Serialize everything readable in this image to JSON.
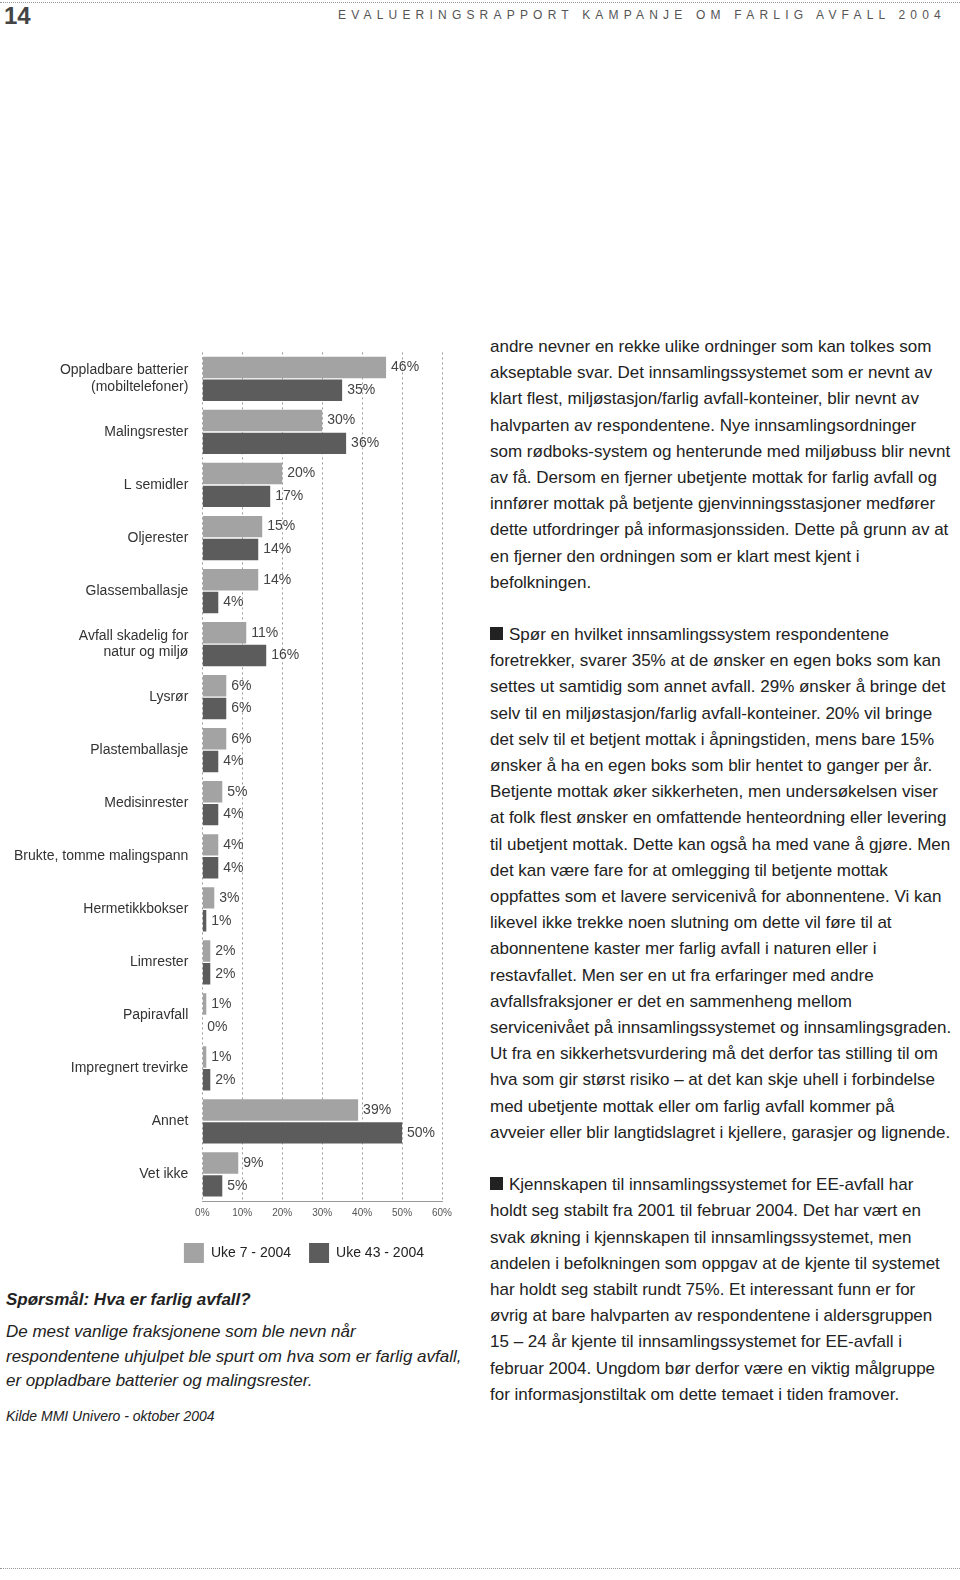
{
  "header": {
    "page_number": "14",
    "title": "EVALUERINGSRAPPORT KAMPANJE OM FARLIG AVFALL 2004"
  },
  "chart_data": {
    "type": "bar",
    "orientation": "horizontal",
    "grid": true,
    "legend": "bottom",
    "data_labels": true,
    "categories": [
      [
        "Oppladbare batterier",
        "(mobiltelefoner)"
      ],
      "Malingsrester",
      "L semidler",
      "Oljerester",
      "Glassemballasje",
      [
        "Avfall skadelig for",
        "natur og miljø"
      ],
      "Lysrør",
      "Plastemballasje",
      "Medisinrester",
      "Brukte, tomme malingspann",
      "Hermetikkbokser",
      "Limrester",
      "Papiravfall",
      "Impregnert trevirke",
      "Annet",
      "Vet ikke"
    ],
    "series": [
      {
        "name": "Uke 7 - 2004",
        "color": "#a3a3a3",
        "values": [
          46,
          30,
          20,
          15,
          14,
          11,
          6,
          6,
          5,
          4,
          3,
          2,
          1,
          1,
          39,
          9
        ],
        "value_labels": [
          "46%",
          "30%",
          "20%",
          "15%",
          "14%",
          "11%",
          "6%",
          "6%",
          "5%",
          "4%",
          "3%",
          "2%",
          "1%",
          "1%",
          "39%",
          "9%"
        ]
      },
      {
        "name": "Uke 43 - 2004",
        "color": "#5c5c5c",
        "values": [
          35,
          36,
          17,
          14,
          4,
          16,
          6,
          4,
          4,
          4,
          1,
          2,
          0,
          2,
          50,
          5
        ],
        "value_labels": [
          "35%",
          "36%",
          "17%",
          "14%",
          "4%",
          "16%",
          "6%",
          "4%",
          "4%",
          "4%",
          "1%",
          "2%",
          "0%",
          "2%",
          "50%",
          "5%"
        ]
      }
    ],
    "xlim": [
      0,
      60
    ],
    "xticks": [
      {
        "value": 0,
        "label": "0%"
      },
      {
        "value": 10,
        "label": "10%"
      },
      {
        "value": 20,
        "label": "20%"
      },
      {
        "value": 30,
        "label": "30%"
      },
      {
        "value": 40,
        "label": "40%"
      },
      {
        "value": 50,
        "label": "50%"
      },
      {
        "value": 60,
        "label": "60%"
      }
    ]
  },
  "caption": {
    "question": "Spørsmål: Hva er farlig avfall?",
    "text": "De mest vanlige fraksjonene som ble nevn når respondentene uhjulpet ble spurt om hva som er farlig avfall, er oppladbare batterier og malingsrester.",
    "source": "Kilde MMI Univero - oktober 2004"
  },
  "body": {
    "paragraphs": [
      {
        "bullet": false,
        "text": "andre nevner en rekke ulike ordninger som kan tolkes som akseptable svar. Det innsamlingssystemet som er nevnt av klart flest, miljøstasjon/farlig avfall-konteiner, blir nevnt av halvparten av respondentene. Nye innsamlingsordninger som rødboks-system og henterunde med miljøbuss blir nevnt av få. Dersom en fjerner ubetjente mottak for farlig avfall og innfører mottak på betjente gjenvinningsstasjoner medfører dette utfordringer på informasjonssiden. Dette på grunn av at en fjerner den ordningen som er klart mest kjent i befolkningen."
      },
      {
        "bullet": true,
        "text": "Spør en hvilket innsamlingssystem respondentene foretrekker, svarer 35% at de ønsker en egen boks som kan settes ut samtidig som annet avfall. 29% ønsker å bringe det selv til en miljøstasjon/farlig avfall-konteiner. 20% vil bringe det selv til et betjent mottak i åpningstiden, mens bare 15% ønsker å ha en egen boks som blir hentet to ganger per år. Betjente mottak øker sikkerheten, men undersøkelsen viser at folk flest ønsker en omfattende henteordning eller levering til ubetjent mottak. Dette kan også ha med vane å gjøre. Men det kan være fare for at omlegging til betjente mottak oppfattes som et lavere servicenivå for abonnentene. Vi kan likevel ikke trekke noen slutning om dette vil føre til at abonnentene kaster mer farlig avfall i naturen eller i restavfallet. Men ser en ut fra erfaringer med andre avfallsfraksjoner er det en sammenheng mellom servicenivået på innsamlingssystemet og innsamlingsgraden. Ut fra en sikkerhetsvurdering må det derfor tas stilling til om hva som gir størst risiko – at det kan skje uhell i forbindelse med ubetjente mottak eller om farlig avfall kommer på avveier eller blir langtidslagret i kjellere, garasjer og lignende."
      },
      {
        "bullet": true,
        "text": "Kjennskapen til innsamlingssystemet for EE-avfall har holdt seg stabilt fra 2001 til februar 2004. Det har vært en svak økning i kjennskapen til innsamlingssystemet, men andelen i befolkningen som oppgav at de kjente til systemet har holdt seg stabilt rundt 75%. Et interessant funn er for øvrig at bare halvparten av respondentene i aldersgruppen 15 – 24 år kjente til innsamlingssystemet for EE-avfall i februar 2004. Ungdom bør derfor være en viktig målgruppe for informasjonstiltak om dette temaet i tiden framover."
      }
    ]
  }
}
